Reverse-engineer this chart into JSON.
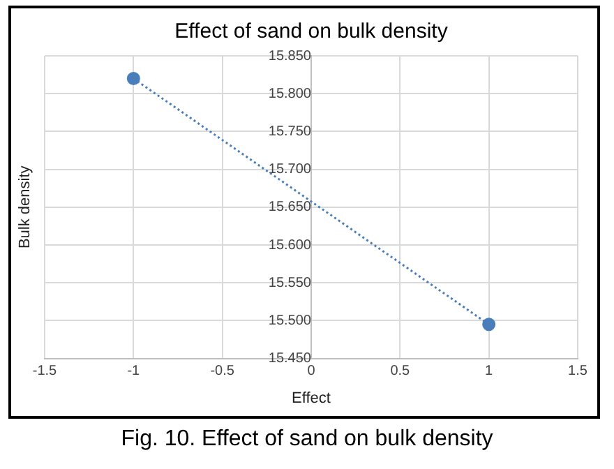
{
  "chart_data": {
    "type": "line",
    "title": "Effect of sand on bulk density",
    "xlabel": "Effect",
    "ylabel": "Bulk density",
    "x": [
      -1,
      1
    ],
    "series": [
      {
        "color": "#4a7ebb",
        "values": [
          15.82,
          15.495
        ]
      }
    ],
    "xlim": [
      -1.5,
      1.5
    ],
    "xticks": [
      -1.5,
      -1,
      -0.5,
      0,
      0.5,
      1,
      1.5
    ],
    "ylim": [
      15.45,
      15.85
    ],
    "yticks": [
      {
        "value": 15.45,
        "label": "15.450"
      },
      {
        "value": 15.5,
        "label": "15.500"
      },
      {
        "value": 15.55,
        "label": "15.550"
      },
      {
        "value": 15.6,
        "label": "15.600"
      },
      {
        "value": 15.65,
        "label": "15.650"
      },
      {
        "value": 15.7,
        "label": "15.700"
      },
      {
        "value": 15.75,
        "label": "15.750"
      },
      {
        "value": 15.8,
        "label": "15.800"
      },
      {
        "value": 15.85,
        "label": "15.850"
      }
    ],
    "grid": true,
    "marker": "circle",
    "line_style": "dotted",
    "legend": false,
    "annotations": [
      "Fig. 10. Effect of sand on bulk density"
    ]
  }
}
